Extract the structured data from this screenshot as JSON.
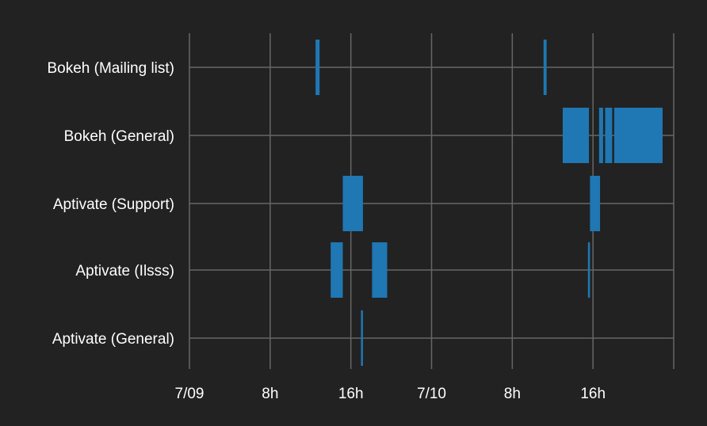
{
  "chart_data": {
    "type": "gantt",
    "grid": true,
    "bar_color": "#1f77b4",
    "grid_color": "#666666",
    "background_color": "#222222",
    "x_unit": "hours since 7/09 00:00",
    "xlim": [
      0,
      48
    ],
    "x_ticks": [
      {
        "value": 0,
        "label": "7/09"
      },
      {
        "value": 8,
        "label": "8h"
      },
      {
        "value": 16,
        "label": "16h"
      },
      {
        "value": 24,
        "label": "7/10"
      },
      {
        "value": 32,
        "label": "8h"
      },
      {
        "value": 40,
        "label": "16h"
      }
    ],
    "categories": [
      "Bokeh (Mailing list)",
      "Bokeh (General)",
      "Aptivate (Support)",
      "Aptivate (Ilsss)",
      "Aptivate (General)"
    ],
    "intervals": [
      {
        "category": "Bokeh (Mailing list)",
        "start": 12.5,
        "end": 12.9
      },
      {
        "category": "Bokeh (Mailing list)",
        "start": 35.1,
        "end": 35.4
      },
      {
        "category": "Bokeh (General)",
        "start": 37.0,
        "end": 39.6
      },
      {
        "category": "Bokeh (General)",
        "start": 40.6,
        "end": 41.0
      },
      {
        "category": "Bokeh (General)",
        "start": 41.2,
        "end": 41.9
      },
      {
        "category": "Bokeh (General)",
        "start": 42.1,
        "end": 46.9
      },
      {
        "category": "Aptivate (Support)",
        "start": 15.2,
        "end": 17.2
      },
      {
        "category": "Aptivate (Support)",
        "start": 39.7,
        "end": 40.7
      },
      {
        "category": "Aptivate (Ilsss)",
        "start": 14.0,
        "end": 15.2
      },
      {
        "category": "Aptivate (Ilsss)",
        "start": 18.1,
        "end": 19.6
      },
      {
        "category": "Aptivate (Ilsss)",
        "start": 39.5,
        "end": 39.7
      },
      {
        "category": "Aptivate (General)",
        "start": 17.0,
        "end": 17.2
      }
    ]
  }
}
